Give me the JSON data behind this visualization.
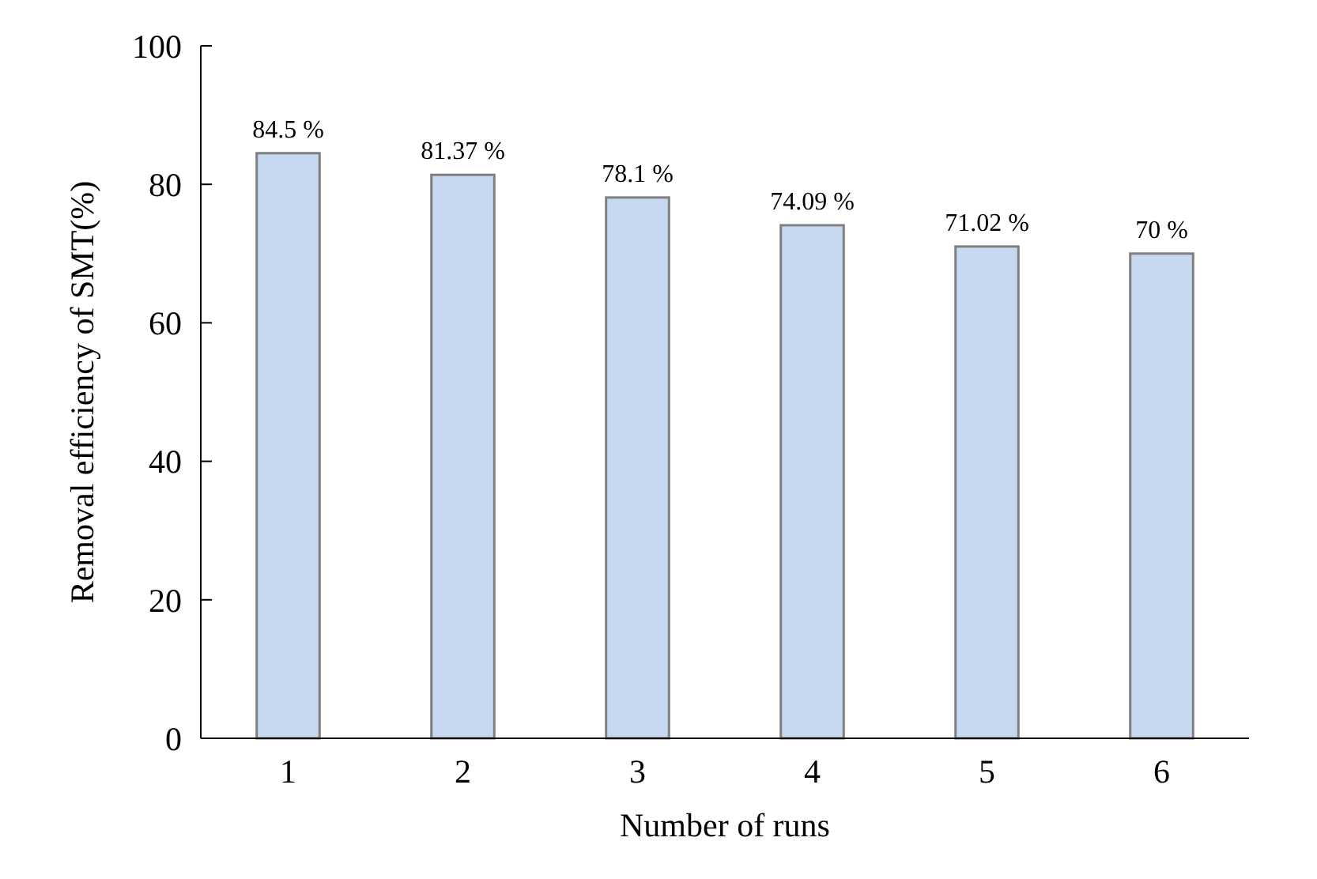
{
  "chart_data": {
    "type": "bar",
    "xlabel": "Number of runs",
    "ylabel": "Removal efficiency of SMT(%)",
    "categories": [
      "1",
      "2",
      "3",
      "4",
      "5",
      "6"
    ],
    "values": [
      84.5,
      81.37,
      78.1,
      74.09,
      71.02,
      70
    ],
    "value_labels": [
      "84.5 %",
      "81.37 %",
      "78.1 %",
      "74.09 %",
      "71.02 %",
      "70 %"
    ],
    "color": "#c6d9f0",
    "ylim": [
      0,
      100
    ],
    "yticks": [
      0,
      20,
      40,
      60,
      80,
      100
    ],
    "grid": false
  }
}
